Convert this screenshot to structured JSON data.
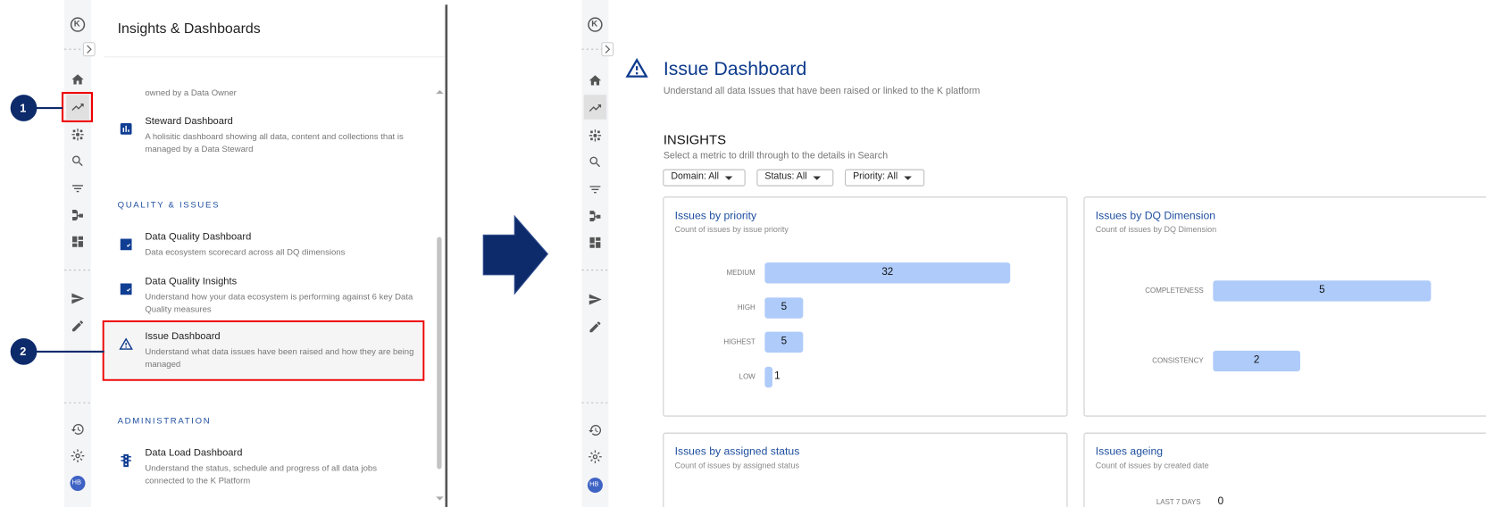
{
  "left_screen": {
    "logo": "K",
    "avatar": "HB",
    "panel": {
      "title": "Insights & Dashboards",
      "clipped_description": "owned by a Data Owner",
      "sections": [
        {
          "items": [
            {
              "title": "Steward Dashboard",
              "description": "A holisitic dashboard showing all data, content and collections that is managed by a Data Steward"
            }
          ]
        },
        {
          "heading": "QUALITY & ISSUES",
          "items": [
            {
              "title": "Data Quality Dashboard",
              "description": "Data ecosystem scorecard across all DQ dimensions"
            },
            {
              "title": "Data Quality Insights",
              "description": "Understand how your data ecosystem is performing against 6 key Data Quality measures"
            },
            {
              "title": "Issue Dashboard",
              "description": "Understand what data issues have been raised and how they are being managed"
            }
          ]
        },
        {
          "heading": "ADMINISTRATION",
          "items": [
            {
              "title": "Data Load Dashboard",
              "description": "Understand the status, schedule and progress of all data jobs connected to the K Platform"
            }
          ]
        }
      ]
    }
  },
  "callouts": [
    "1",
    "2"
  ],
  "right_screen": {
    "logo": "K",
    "avatar": "HB",
    "title": "Issue Dashboard",
    "subtitle": "Understand all data Issues that have been raised or linked to the K platform",
    "insights": {
      "heading": "INSIGHTS",
      "subtitle": "Select a metric to drill through to the details in Search",
      "filters": [
        "Domain: All",
        "Status: All",
        "Priority: All"
      ],
      "cards": [
        {
          "title": "Issues by priority",
          "subtitle": "Count of issues by issue priority",
          "categories": [
            "MEDIUM",
            "HIGH",
            "HIGHEST",
            "LOW"
          ],
          "values": [
            32,
            5,
            5,
            1
          ]
        },
        {
          "title": "Issues by DQ Dimension",
          "subtitle": "Count of issues by DQ Dimension",
          "categories": [
            "COMPLETENESS",
            "CONSISTENCY"
          ],
          "values": [
            5,
            2
          ]
        },
        {
          "title": "Issues by assigned status",
          "subtitle": "Count of issues by assigned status"
        },
        {
          "title": "Issues ageing",
          "subtitle": "Count of issues by created date",
          "categories": [
            "LAST 7 DAYS"
          ],
          "values": [
            0
          ]
        }
      ]
    }
  }
}
